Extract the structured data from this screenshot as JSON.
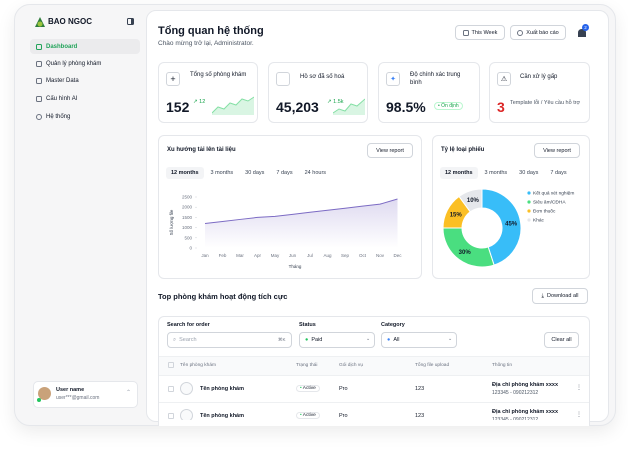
{
  "sidebar": {
    "brand": "BAO NGOC",
    "nav": [
      "Dashboard",
      "Quản lý phòng khám",
      "Master Data",
      "Cấu hình AI",
      "Hệ thống"
    ],
    "user": {
      "name": "User name",
      "email": "user***@gmail.com"
    }
  },
  "header": {
    "title": "Tổng quan hệ thống",
    "subtitle": "Chào mừng trở lại, Administrator.",
    "buttons": [
      "This Week",
      "Xuất báo cáo"
    ],
    "notifications": "2"
  },
  "kpis": [
    {
      "label": "Tổng số phòng khám",
      "value": "152",
      "delta": "12"
    },
    {
      "label": "Hồ sơ đã số hoá",
      "value": "45,203",
      "delta": "1.5k"
    },
    {
      "label": "Độ chính xác trung bình",
      "value": "98.5%",
      "badge": "Ổn định"
    },
    {
      "label": "Cần xử lý gấp",
      "value": "3",
      "note": "Template lỗi / Yêu cầu hỗ trợ"
    }
  ],
  "chart_data": [
    {
      "type": "line",
      "title": "Xu hướng tải lên tài liệu",
      "button": "View report",
      "tabs": [
        "12 months",
        "3 months",
        "30 days",
        "7 days",
        "24 hours"
      ],
      "categories": [
        "Jan",
        "Feb",
        "Mar",
        "Apr",
        "May",
        "Jun",
        "Jul",
        "Aug",
        "Sep",
        "Oct",
        "Nov",
        "Dec"
      ],
      "values": [
        1200,
        1300,
        1400,
        1500,
        1550,
        1650,
        1750,
        1850,
        1950,
        2050,
        2150,
        2400
      ],
      "color": "#7c6bc4",
      "ylim": [
        0,
        2500
      ],
      "yticks": [
        0,
        500,
        1000,
        1500,
        2000,
        2500
      ],
      "y_label": "Số lượng file",
      "x_label": "Tháng"
    },
    {
      "type": "pie",
      "title": "Tỷ lệ loại phiếu",
      "button": "View report",
      "tabs": [
        "12 months",
        "3 months",
        "30 days",
        "7 days"
      ],
      "categories": [
        "Kết quả xét nghiệm",
        "Siêu âm/CĐHA",
        "Đơn thuốc",
        "Khác"
      ],
      "values": [
        45,
        30,
        15,
        10
      ],
      "value_labels": [
        "45%",
        "30%",
        "15%",
        "10%"
      ],
      "colors": [
        "#38bdf8",
        "#4ade80",
        "#fbbf24",
        "#e5e7eb"
      ]
    }
  ],
  "table": {
    "title": "Top phòng khám hoạt động tích cực",
    "download": "Download all",
    "filters": {
      "search_label": "Search for order",
      "search_placeholder": "Search",
      "shortcut": "⌘K",
      "status_label": "Status",
      "status_value": "Paid",
      "category_label": "Category",
      "category_value": "All",
      "clear": "Clear all"
    },
    "columns": [
      "Tên phòng khám",
      "Trạng thái",
      "Gói dịch vụ",
      "Tổng file upload",
      "Thông tin"
    ],
    "rows": [
      {
        "name": "Tên phòng khám",
        "status": "Active",
        "plan": "Pro",
        "uploads": "123",
        "address": "Địa chỉ phòng khám xxxx",
        "contact": "123345 - 090212312"
      },
      {
        "name": "Tên phòng khám",
        "status": "Active",
        "plan": "Pro",
        "uploads": "123",
        "address": "Địa chỉ phòng khám xxxx",
        "contact": "123345 - 090212312"
      }
    ]
  }
}
